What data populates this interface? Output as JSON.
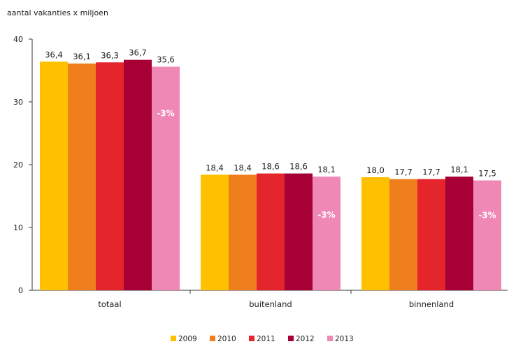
{
  "chart_data": {
    "type": "bar",
    "ylabel": "aantal vakanties x miljoen",
    "ylim": [
      0,
      40
    ],
    "yticks": [
      0,
      10,
      20,
      30,
      40
    ],
    "grid": false,
    "legend": "bottom",
    "categories": [
      "totaal",
      "buitenland",
      "binnenland"
    ],
    "series": [
      {
        "name": "2009",
        "color": "#FFC000",
        "values": [
          36.4,
          18.4,
          18.0
        ],
        "labels": [
          "36,4",
          "18,4",
          "18,0"
        ]
      },
      {
        "name": "2010",
        "color": "#EF7F1C",
        "values": [
          36.1,
          18.4,
          17.7
        ],
        "labels": [
          "36,1",
          "18,4",
          "17,7"
        ]
      },
      {
        "name": "2011",
        "color": "#E4252C",
        "values": [
          36.3,
          18.6,
          17.7
        ],
        "labels": [
          "36,3",
          "18,6",
          "17,7"
        ]
      },
      {
        "name": "2012",
        "color": "#A60034",
        "values": [
          36.7,
          18.6,
          18.1
        ],
        "labels": [
          "36,7",
          "18,6",
          "18,1"
        ]
      },
      {
        "name": "2013",
        "color": "#F088B5",
        "values": [
          35.6,
          18.1,
          17.5
        ],
        "labels": [
          "35,6",
          "18,1",
          "17,5"
        ]
      }
    ],
    "annotations": [
      {
        "category": "totaal",
        "series": "2013",
        "text": "-3%"
      },
      {
        "category": "buitenland",
        "series": "2013",
        "text": "-3%"
      },
      {
        "category": "binnenland",
        "series": "2013",
        "text": "-3%"
      }
    ]
  }
}
